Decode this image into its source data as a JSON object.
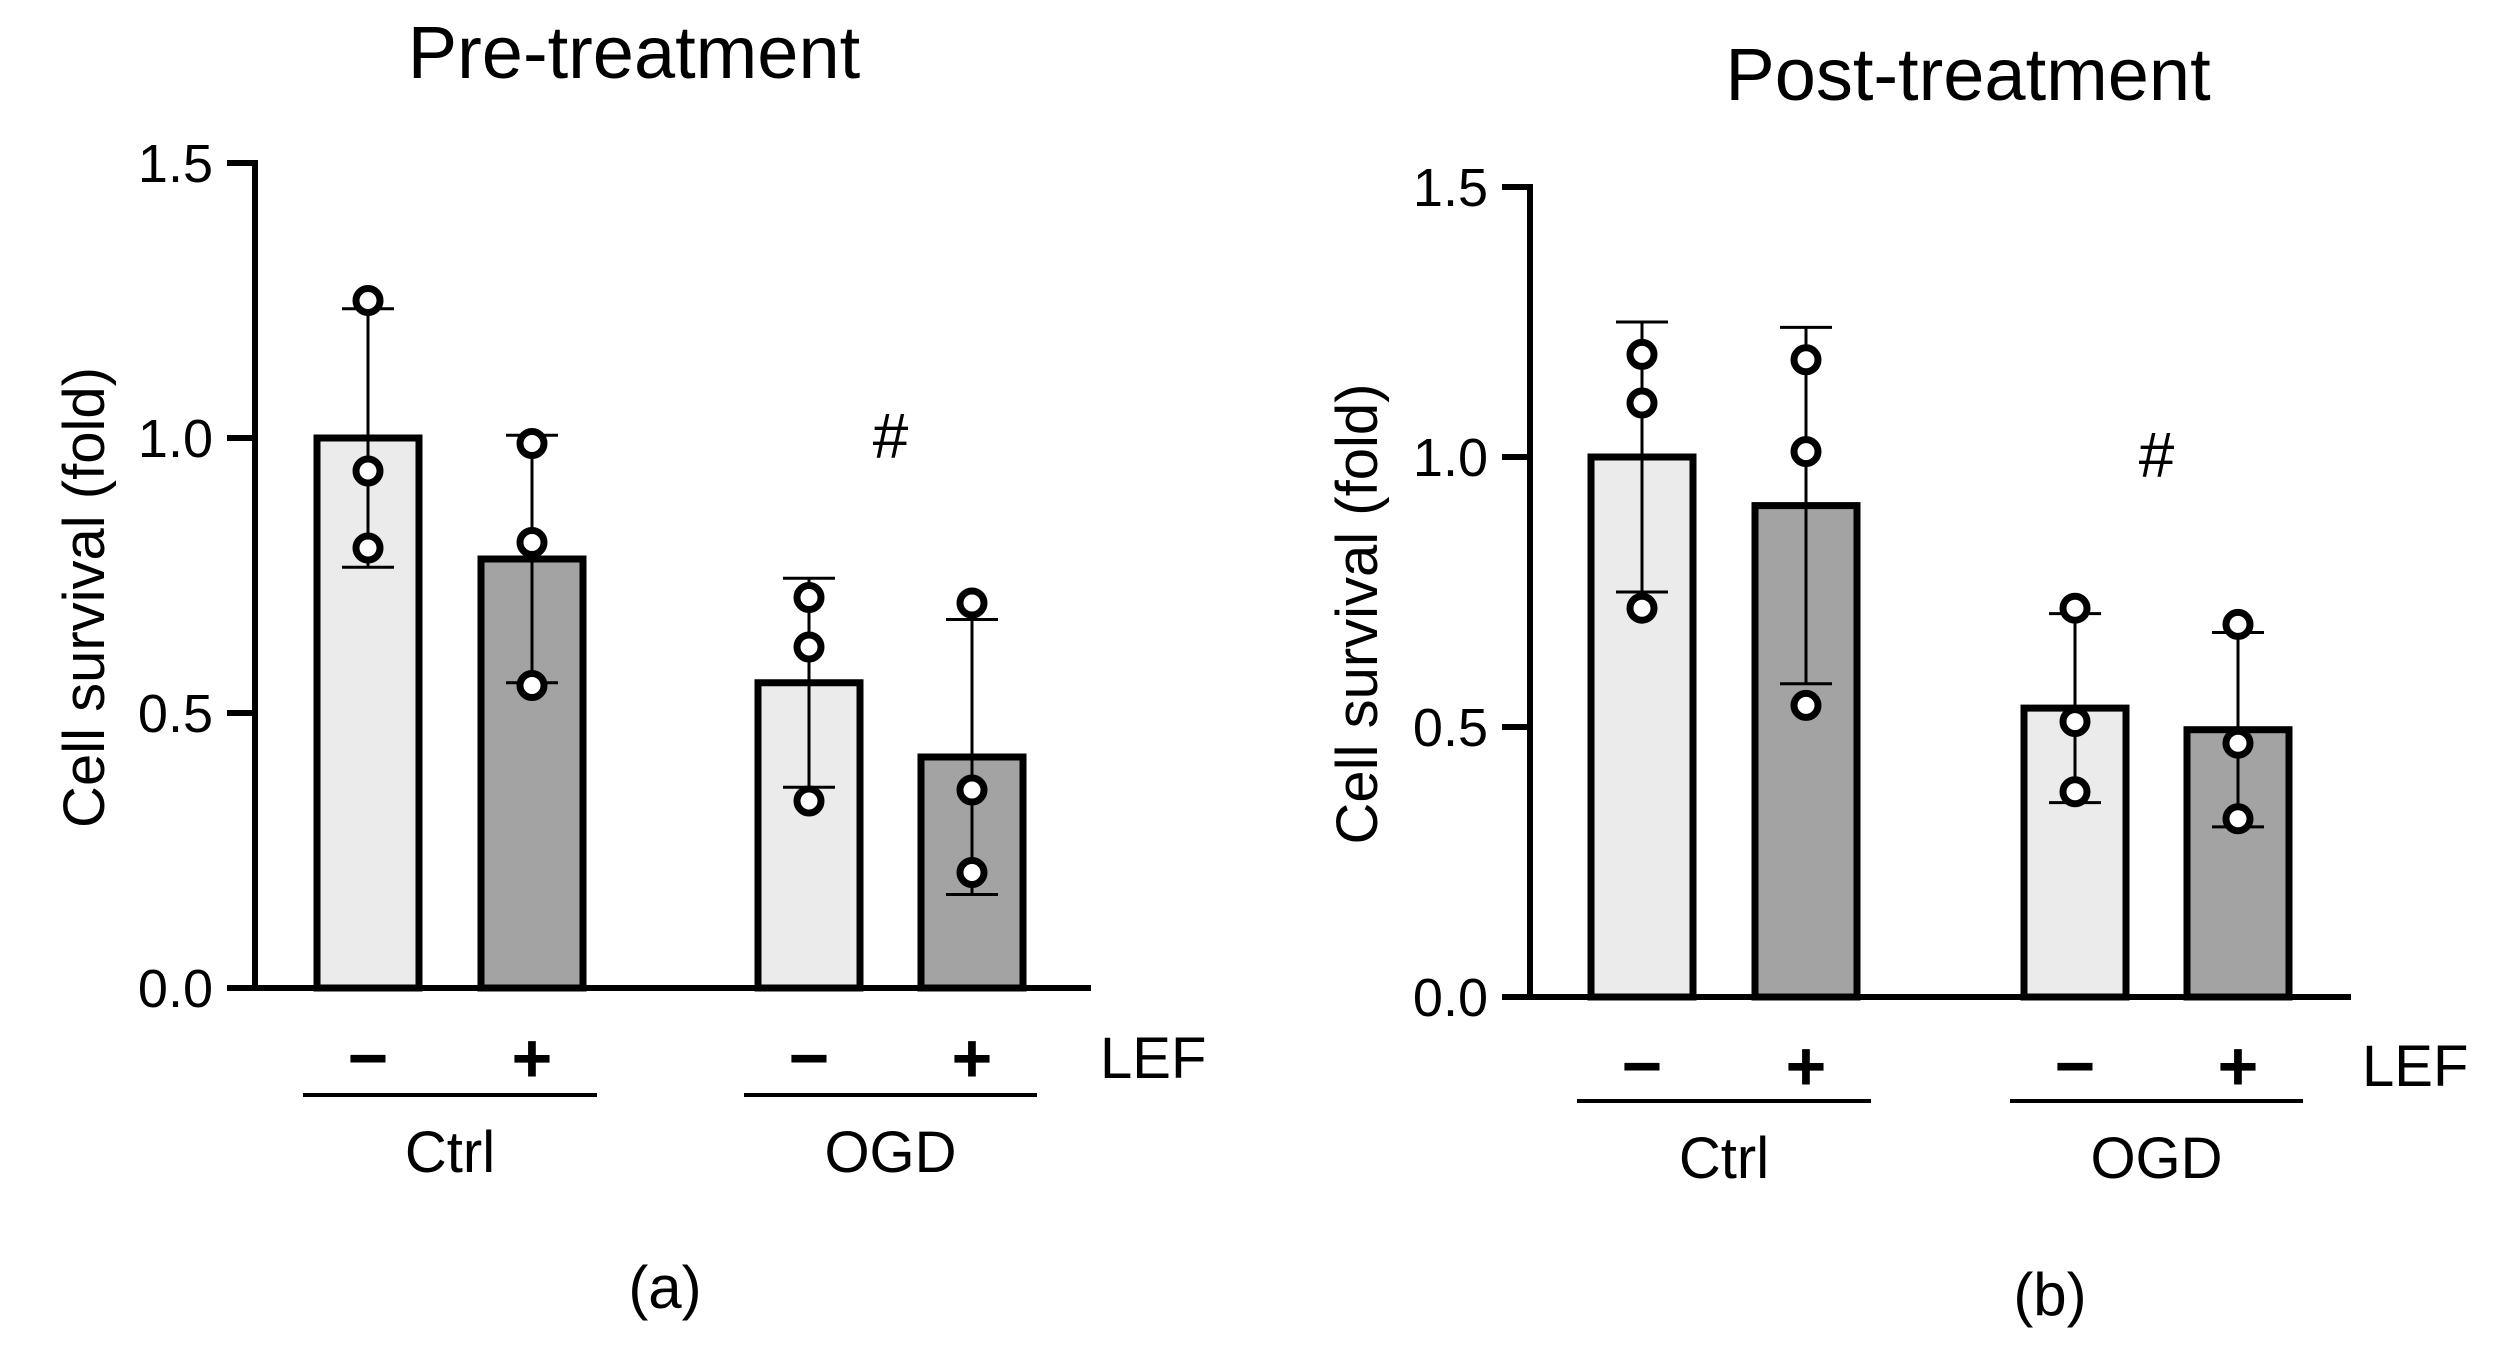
{
  "chart_data": [
    {
      "type": "bar",
      "panel": "(a)",
      "title": "Pre-treatment",
      "ylabel": "Cell survival (fold)",
      "xlabel": "",
      "ylim": [
        0,
        1.5
      ],
      "yticks": [
        "0.0",
        "0.5",
        "1.0",
        "1.5"
      ],
      "ytick_values": [
        0,
        0.5,
        1.0,
        1.5
      ],
      "factor_label": "LEF",
      "groups": [
        "Ctrl",
        "OGD"
      ],
      "categories": [
        "−",
        "+",
        "−",
        "+"
      ],
      "group_of": [
        0,
        0,
        1,
        1
      ],
      "values": [
        1.0,
        0.78,
        0.555,
        0.42
      ],
      "error": [
        0.235,
        0.225,
        0.19,
        0.25
      ],
      "points": [
        [
          1.25,
          0.94,
          0.8
        ],
        [
          0.99,
          0.81,
          0.55
        ],
        [
          0.71,
          0.62,
          0.34
        ],
        [
          0.7,
          0.36,
          0.21
        ]
      ],
      "fills": [
        "#ebebeb",
        "#a3a3a3",
        "#ebebeb",
        "#a3a3a3"
      ],
      "annotation": {
        "text": "#",
        "group": 1,
        "y": 1.0
      }
    },
    {
      "type": "bar",
      "panel": "(b)",
      "title": "Post-treatment",
      "ylabel": "Cell survival (fold)",
      "xlabel": "",
      "ylim": [
        0,
        1.5
      ],
      "yticks": [
        "0.0",
        "0.5",
        "1.0",
        "1.5"
      ],
      "ytick_values": [
        0,
        0.5,
        1.0,
        1.5
      ],
      "factor_label": "LEF",
      "groups": [
        "Ctrl",
        "OGD"
      ],
      "categories": [
        "−",
        "+",
        "−",
        "+"
      ],
      "group_of": [
        0,
        0,
        1,
        1
      ],
      "values": [
        1.0,
        0.91,
        0.535,
        0.495
      ],
      "error": [
        0.25,
        0.33,
        0.175,
        0.18
      ],
      "points": [
        [
          1.19,
          1.1,
          0.72
        ],
        [
          1.18,
          1.01,
          0.54
        ],
        [
          0.72,
          0.51,
          0.38
        ],
        [
          0.69,
          0.47,
          0.33
        ]
      ],
      "fills": [
        "#ebebeb",
        "#a3a3a3",
        "#ebebeb",
        "#a3a3a3"
      ],
      "annotation": {
        "text": "#",
        "group": 1,
        "y": 1.0
      }
    }
  ]
}
